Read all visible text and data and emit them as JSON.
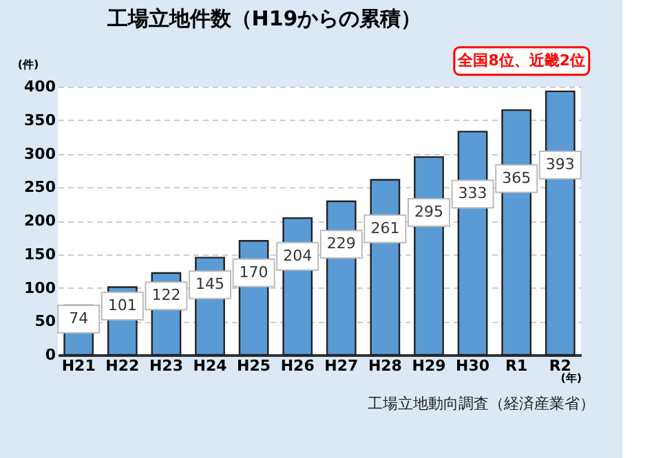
{
  "chart_data": {
    "type": "bar",
    "title": "工場立地件数（H19からの累積）",
    "ylabel": "(件)",
    "xlabel": "(年)",
    "categories": [
      "H21",
      "H22",
      "H23",
      "H24",
      "H25",
      "H26",
      "H27",
      "H28",
      "H29",
      "H30",
      "R1",
      "R2"
    ],
    "values": [
      74,
      101,
      122,
      145,
      170,
      204,
      229,
      261,
      295,
      333,
      365,
      393
    ],
    "color": "#5b9bd5",
    "ylim": [
      0,
      400
    ],
    "yticks": [
      0,
      50,
      100,
      150,
      200,
      250,
      300,
      350,
      400
    ],
    "grid": "y",
    "data_labels": true,
    "annotations": [
      {
        "text": "全国8位、近畿2位",
        "x": "R2",
        "y": 393
      },
      "工場立地動向調査（経済産業省）"
    ]
  }
}
